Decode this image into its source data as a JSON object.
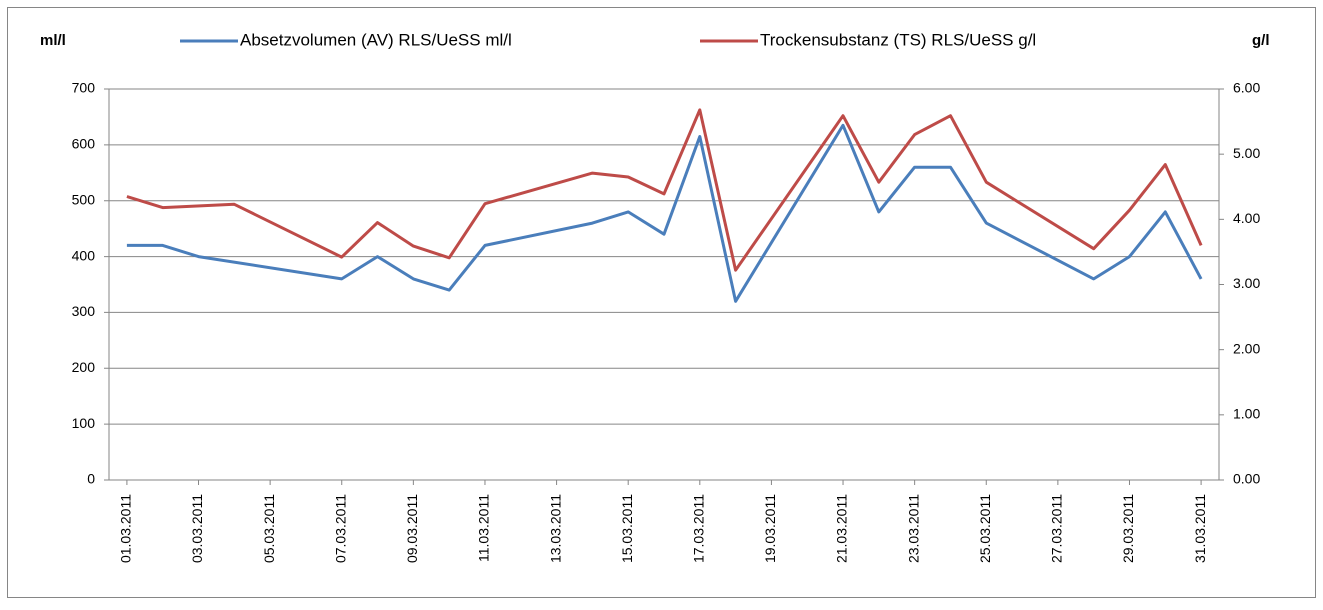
{
  "chart_data": {
    "type": "line",
    "y_label": "ml/l",
    "y2_label": "g/l",
    "xticks": [
      "01.03.2011",
      "03.03.2011",
      "05.03.2011",
      "07.03.2011",
      "09.03.2011",
      "11.03.2011",
      "13.03.2011",
      "15.03.2011",
      "17.03.2011",
      "19.03.2011",
      "21.03.2011",
      "23.03.2011",
      "25.03.2011",
      "27.03.2011",
      "29.03.2011",
      "31.03.2011"
    ],
    "xlim": [
      "01.03.2011",
      "31.03.2011"
    ],
    "ylim": [
      0,
      700
    ],
    "yticks": [
      0,
      100,
      200,
      300,
      400,
      500,
      600,
      700
    ],
    "y2lim": [
      0,
      6
    ],
    "y2ticks": [
      {
        "value": 0,
        "label": "0.00"
      },
      {
        "value": 1,
        "label": "1.00"
      },
      {
        "value": 2,
        "label": "2.00"
      },
      {
        "value": 3,
        "label": "3.00"
      },
      {
        "value": 4,
        "label": "4.00"
      },
      {
        "value": 5,
        "label": "5.00"
      },
      {
        "value": 6,
        "label": "6.00"
      }
    ],
    "grid": true,
    "legend": "top",
    "series": [
      {
        "name": "Absetzvolumen (AV) RLS/UeSS ml/l",
        "color": "#4a7ebb",
        "x": [
          "01.03.2011",
          "02.03.2011",
          "03.03.2011",
          "07.03.2011",
          "08.03.2011",
          "09.03.2011",
          "10.03.2011",
          "11.03.2011",
          "14.03.2011",
          "15.03.2011",
          "16.03.2011",
          "17.03.2011",
          "18.03.2011",
          "21.03.2011",
          "22.03.2011",
          "23.03.2011",
          "24.03.2011",
          "25.03.2011",
          "28.03.2011",
          "29.03.2011",
          "30.03.2011",
          "31.03.2011"
        ],
        "values": [
          420,
          420,
          400,
          360,
          400,
          360,
          340,
          420,
          460,
          480,
          440,
          615,
          320,
          635,
          480,
          560,
          560,
          460,
          360,
          400,
          480,
          360
        ]
      },
      {
        "name": "Trockensubstanz (TS) RLS/UeSS g/l",
        "color": "#be4b48",
        "axis": "y2",
        "x": [
          "01.03.2011",
          "02.03.2011",
          "04.03.2011",
          "07.03.2011",
          "08.03.2011",
          "09.03.2011",
          "10.03.2011",
          "11.03.2011",
          "14.03.2011",
          "15.03.2011",
          "16.03.2011",
          "17.03.2011",
          "18.03.2011",
          "21.03.2011",
          "22.03.2011",
          "23.03.2011",
          "24.03.2011",
          "25.03.2011",
          "28.03.2011",
          "29.03.2011",
          "30.03.2011",
          "31.03.2011"
        ],
        "values": [
          4.35,
          4.18,
          4.23,
          3.42,
          3.95,
          3.59,
          3.41,
          4.24,
          4.71,
          4.65,
          4.39,
          5.68,
          3.22,
          5.59,
          4.57,
          5.3,
          5.59,
          4.57,
          3.55,
          4.14,
          4.84,
          3.6
        ]
      }
    ]
  }
}
